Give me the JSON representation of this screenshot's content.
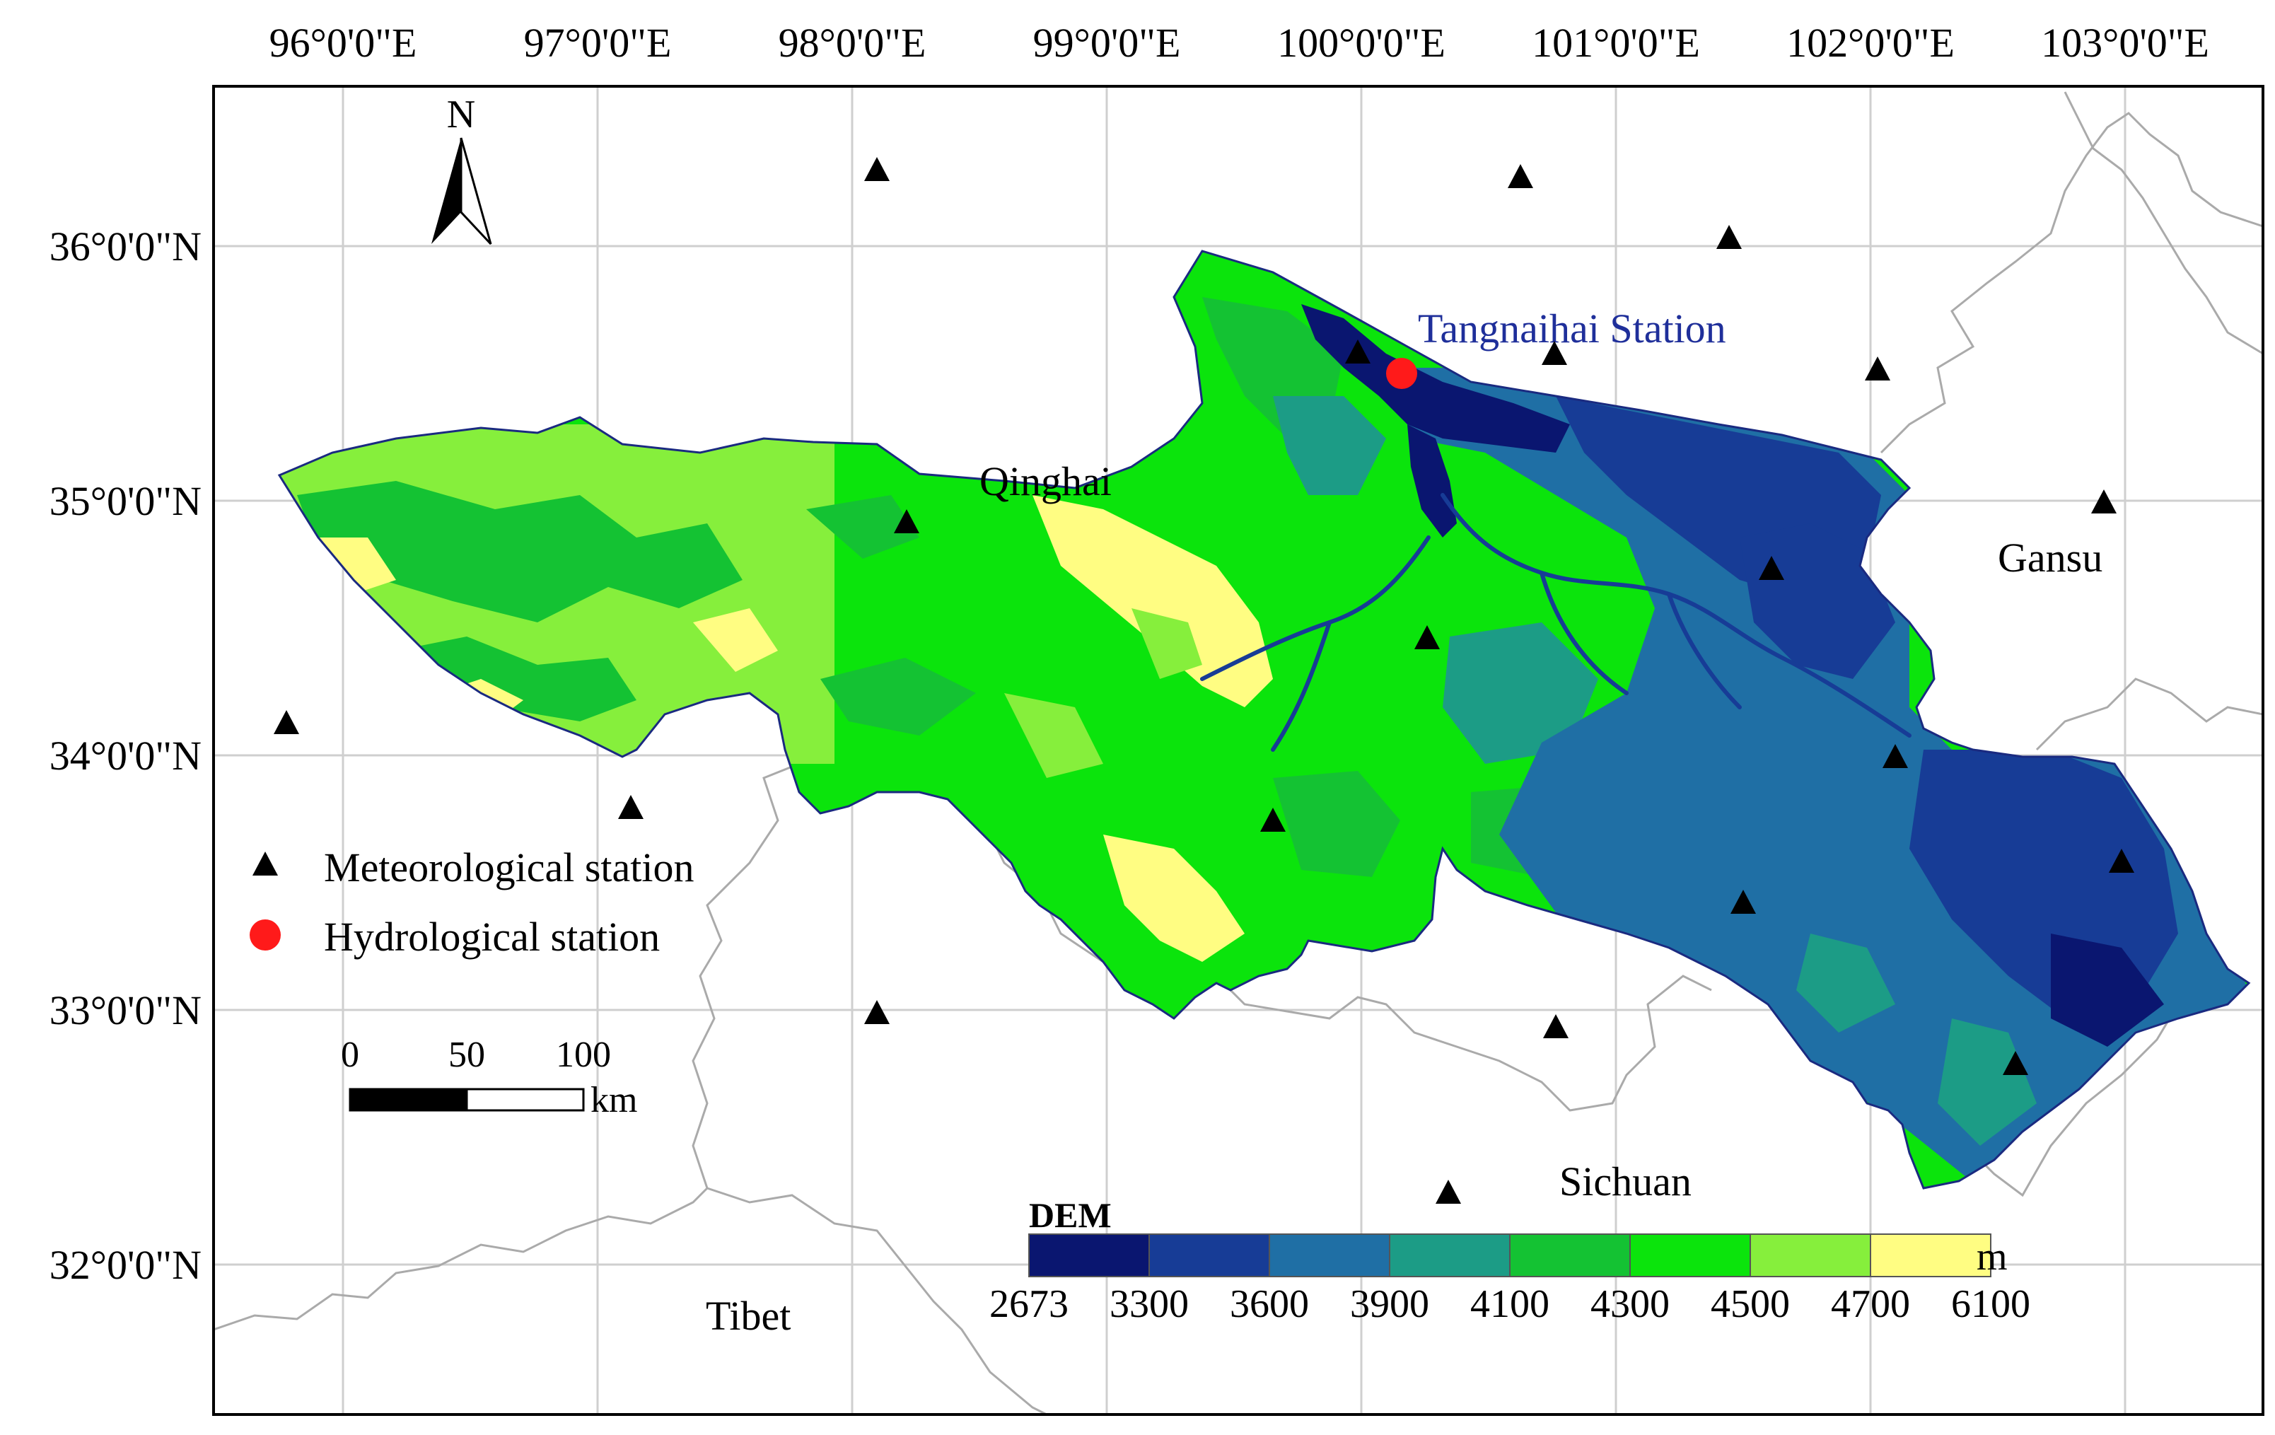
{
  "map": {
    "longitude_labels": [
      "96°0'0\"E",
      "97°0'0\"E",
      "98°0'0\"E",
      "99°0'0\"E",
      "100°0'0\"E",
      "101°0'0\"E",
      "102°0'0\"E",
      "103°0'0\"E"
    ],
    "latitude_labels": [
      "36°0'0\"N",
      "35°0'0\"N",
      "34°0'0\"N",
      "33°0'0\"N",
      "32°0'0\"N"
    ],
    "north_arrow_label": "N",
    "places": {
      "qinghai": "Qinghai",
      "gansu": "Gansu",
      "sichuan": "Sichuan",
      "tibet": "Tibet"
    },
    "hydrological_station_name": "Tangnaihai Station",
    "legend": {
      "meteorological": "Meteorological station",
      "hydrological": "Hydrological station"
    },
    "scale_bar": {
      "ticks": [
        "0",
        "50",
        "100"
      ],
      "unit": "km"
    },
    "dem": {
      "title": "DEM",
      "unit": "m",
      "breaks": [
        "2673",
        "3300",
        "3600",
        "3900",
        "4100",
        "4300",
        "4500",
        "4700",
        "6100"
      ],
      "colors": [
        "#0a1670",
        "#173c96",
        "#1f6fa5",
        "#1c9c86",
        "#14c233",
        "#0be40c",
        "#86ef3c",
        "#fffd82"
      ]
    },
    "colors": {
      "boundary": "#aaaaaa",
      "basin_outline": "#1a2a80",
      "station_label": "#1f2f9a",
      "hydro_marker": "#ff1a1a"
    }
  }
}
